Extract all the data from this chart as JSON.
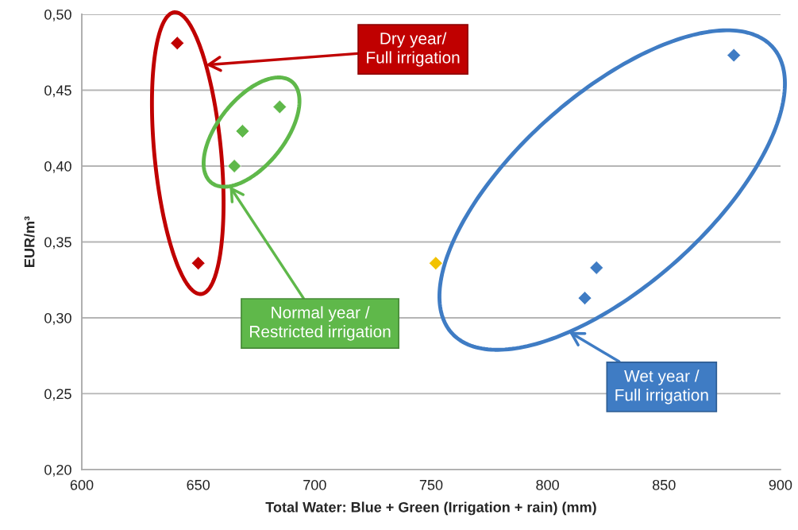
{
  "chart_data": {
    "type": "scatter",
    "xlabel": "Total Water: Blue + Green (Irrigation + rain) (mm)",
    "ylabel": "EUR/m³",
    "xlim": [
      600,
      900
    ],
    "ylim": [
      0.2,
      0.5
    ],
    "xticks": [
      600,
      650,
      700,
      750,
      800,
      850,
      900
    ],
    "yticks": [
      {
        "value": 0.2,
        "label": "0,20"
      },
      {
        "value": 0.25,
        "label": "0,25"
      },
      {
        "value": 0.3,
        "label": "0,30"
      },
      {
        "value": 0.35,
        "label": "0,35"
      },
      {
        "value": 0.4,
        "label": "0,40"
      },
      {
        "value": 0.45,
        "label": "0,45"
      },
      {
        "value": 0.5,
        "label": "0,50"
      }
    ],
    "grid": "y",
    "marker": "diamond",
    "series": [
      {
        "name": "Dry year/\nFull irrigation",
        "color": "#c00000",
        "x": [
          641,
          650
        ],
        "values": [
          0.481,
          0.336
        ]
      },
      {
        "name": "Normal year /\nRestricted irrigation",
        "color": "#5fb84a",
        "x": [
          665.5,
          669,
          685
        ],
        "values": [
          0.4,
          0.423,
          0.439
        ]
      },
      {
        "name": "Wet year /\nFull irrigation",
        "color": "#3f7cc4",
        "colors": [
          "#f2c200",
          "#3f7cc4",
          "#3f7cc4",
          "#3f7cc4"
        ],
        "x": [
          752,
          816,
          821,
          880
        ],
        "values": [
          0.336,
          0.313,
          0.333,
          0.473
        ]
      }
    ]
  }
}
